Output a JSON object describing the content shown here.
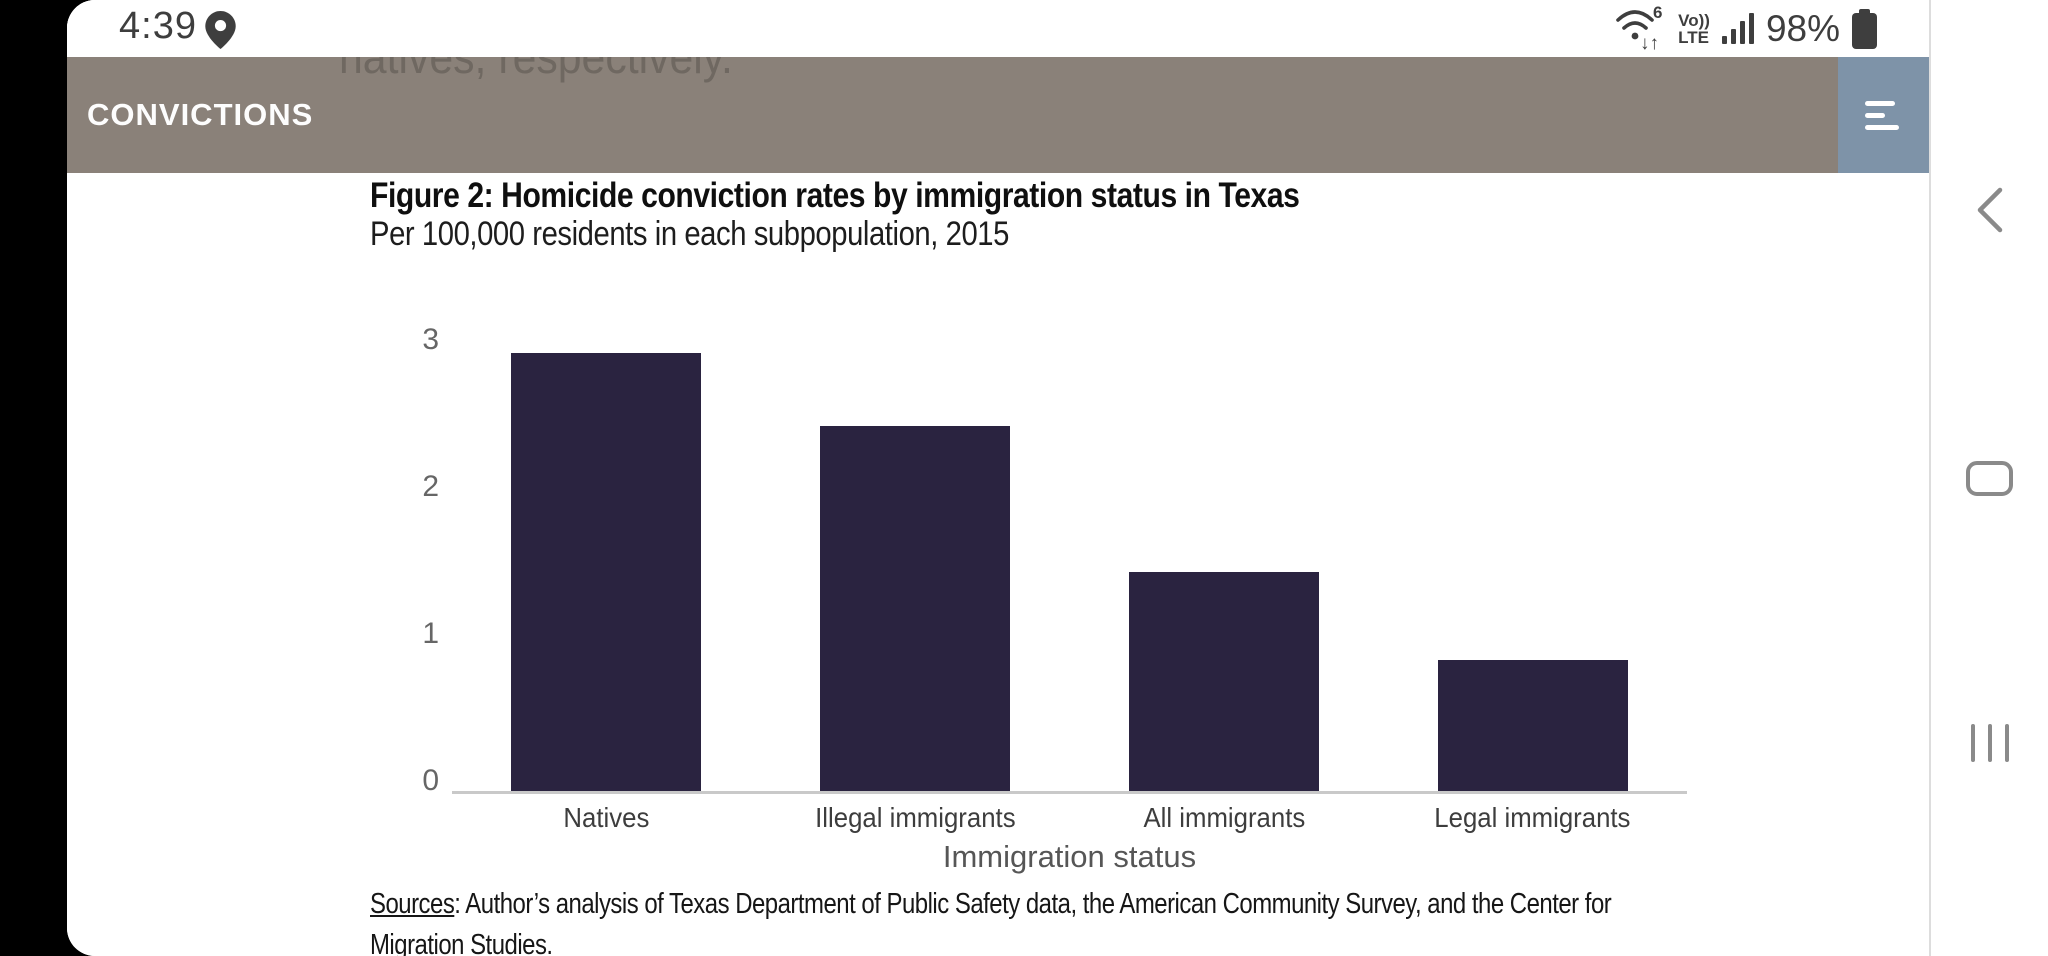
{
  "status_bar": {
    "time": "4:39",
    "wifi_badge": "6",
    "wifi_arrows": "↓↑",
    "volte_top": "Vo))",
    "volte_bottom": "LTE",
    "battery_percent": "98%"
  },
  "header": {
    "app_title": "CONVICTIONS",
    "ghost_text": "natives, respectively."
  },
  "figure": {
    "title": "Figure 2: Homicide conviction rates by immigration status in Texas",
    "subtitle": "Per 100,000 residents in each subpopulation, 2015",
    "sources_label": "Sources",
    "sources_rest": ": Author’s analysis of Texas Department of Public Safety data, the American Community Survey, and the Center for Migration Studies."
  },
  "chart_data": {
    "type": "bar",
    "categories": [
      "Natives",
      "Illegal immigrants",
      "All immigrants",
      "Legal immigrants"
    ],
    "values": [
      3.0,
      2.5,
      1.5,
      0.9
    ],
    "title": "Figure 2: Homicide conviction rates by immigration status in Texas",
    "subtitle": "Per 100,000 residents in each subpopulation, 2015",
    "xlabel": "Immigration status",
    "ylabel": "",
    "ylim": [
      0,
      3
    ],
    "yticks": [
      0,
      1,
      2,
      3
    ],
    "bar_color": "#2a2340",
    "axis_line_color": "#c9c9c9",
    "grid": false,
    "legend": false
  },
  "colors": {
    "header_bar": "#8a8179",
    "menu_button": "#7e93a8",
    "status_text": "#3e3e3e",
    "nav_icon": "#8a8a8a",
    "screen_edge": "#000000"
  }
}
